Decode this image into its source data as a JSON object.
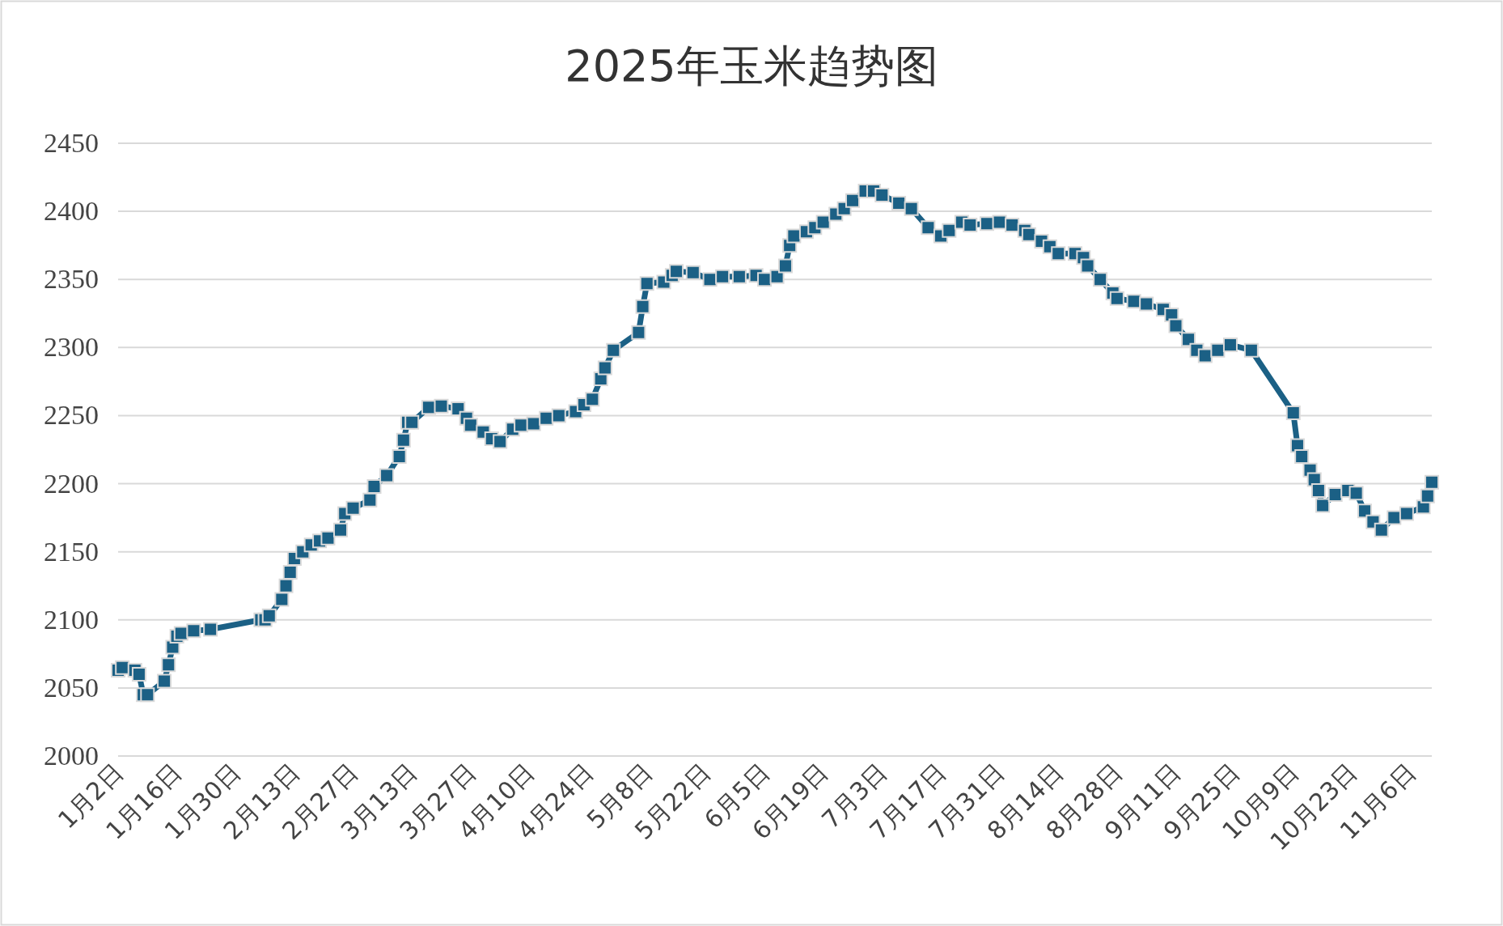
{
  "chart_data": {
    "type": "line",
    "title": "2025年玉米趋势图",
    "marker": "square",
    "line_style": "solid",
    "grid": "y",
    "xlim": [
      "--01-02",
      "--11-11"
    ],
    "ylim": [
      2000,
      2450
    ],
    "yticks": [
      2000,
      2050,
      2100,
      2150,
      2200,
      2250,
      2300,
      2350,
      2400,
      2450
    ],
    "xticks": [
      {
        "value": "--01-02",
        "label": "1月2日"
      },
      {
        "value": "--01-16",
        "label": "1月16日"
      },
      {
        "value": "--01-30",
        "label": "1月30日"
      },
      {
        "value": "--02-13",
        "label": "2月13日"
      },
      {
        "value": "--02-27",
        "label": "2月27日"
      },
      {
        "value": "--03-13",
        "label": "3月13日"
      },
      {
        "value": "--03-27",
        "label": "3月27日"
      },
      {
        "value": "--04-10",
        "label": "4月10日"
      },
      {
        "value": "--04-24",
        "label": "4月24日"
      },
      {
        "value": "--05-08",
        "label": "5月8日"
      },
      {
        "value": "--05-22",
        "label": "5月22日"
      },
      {
        "value": "--06-05",
        "label": "6月5日"
      },
      {
        "value": "--06-19",
        "label": "6月19日"
      },
      {
        "value": "--07-03",
        "label": "7月3日"
      },
      {
        "value": "--07-17",
        "label": "7月17日"
      },
      {
        "value": "--07-31",
        "label": "7月31日"
      },
      {
        "value": "--08-14",
        "label": "8月14日"
      },
      {
        "value": "--08-28",
        "label": "8月28日"
      },
      {
        "value": "--09-11",
        "label": "9月11日"
      },
      {
        "value": "--09-25",
        "label": "9月25日"
      },
      {
        "value": "--10-09",
        "label": "10月9日"
      },
      {
        "value": "--10-23",
        "label": "10月23日"
      },
      {
        "value": "--11-06",
        "label": "11月6日"
      }
    ],
    "x": [
      "--01-02",
      "--01-03",
      "--01-06",
      "--01-07",
      "--01-08",
      "--01-09",
      "--01-13",
      "--01-14",
      "--01-15",
      "--01-16",
      "--01-17",
      "--01-20",
      "--01-24",
      "--02-05",
      "--02-06",
      "--02-07",
      "--02-10",
      "--02-11",
      "--02-12",
      "--02-13",
      "--02-15",
      "--02-17",
      "--02-19",
      "--02-21",
      "--02-24",
      "--02-25",
      "--02-27",
      "--03-03",
      "--03-04",
      "--03-07",
      "--03-10",
      "--03-11",
      "--03-12",
      "--03-13",
      "--03-17",
      "--03-20",
      "--03-24",
      "--03-26",
      "--03-27",
      "--03-30",
      "--04-01",
      "--04-03",
      "--04-06",
      "--04-08",
      "--04-11",
      "--04-14",
      "--04-17",
      "--04-21",
      "--04-23",
      "--04-25",
      "--04-27",
      "--04-28",
      "--04-30",
      "--05-06",
      "--05-07",
      "--05-08",
      "--05-12",
      "--05-14",
      "--05-15",
      "--05-19",
      "--05-23",
      "--05-26",
      "--05-30",
      "--06-03",
      "--06-05",
      "--06-08",
      "--06-10",
      "--06-11",
      "--06-12",
      "--06-15",
      "--06-17",
      "--06-19",
      "--06-22",
      "--06-24",
      "--06-26",
      "--06-29",
      "--07-01",
      "--07-03",
      "--07-07",
      "--07-10",
      "--07-14",
      "--07-17",
      "--07-19",
      "--07-22",
      "--07-24",
      "--07-28",
      "--07-31",
      "--08-03",
      "--08-06",
      "--08-07",
      "--08-10",
      "--08-12",
      "--08-14",
      "--08-18",
      "--08-20",
      "--08-21",
      "--08-24",
      "--08-27",
      "--08-28",
      "--09-01",
      "--09-04",
      "--09-08",
      "--09-10",
      "--09-11",
      "--09-14",
      "--09-16",
      "--09-18",
      "--09-21",
      "--09-24",
      "--09-29",
      "--10-09",
      "--10-10",
      "--10-11",
      "--10-13",
      "--10-14",
      "--10-15",
      "--10-16",
      "--10-19",
      "--10-22",
      "--10-24",
      "--10-26",
      "--10-28",
      "--10-30",
      "--11-02",
      "--11-05",
      "--11-09",
      "--11-10",
      "--11-11"
    ],
    "series": [
      {
        "color": "#1b6085",
        "values": [
          2063,
          2065,
          2063,
          2060,
          2045,
          2045,
          2055,
          2067,
          2080,
          2088,
          2090,
          2092,
          2093,
          2100,
          2100,
          2103,
          2115,
          2125,
          2135,
          2145,
          2150,
          2155,
          2158,
          2160,
          2166,
          2178,
          2182,
          2188,
          2198,
          2206,
          2220,
          2232,
          2245,
          2245,
          2256,
          2257,
          2255,
          2248,
          2243,
          2238,
          2233,
          2231,
          2240,
          2243,
          2244,
          2248,
          2250,
          2253,
          2258,
          2262,
          2277,
          2285,
          2298,
          2311,
          2330,
          2347,
          2348,
          2353,
          2356,
          2355,
          2350,
          2352,
          2352,
          2353,
          2350,
          2352,
          2360,
          2375,
          2382,
          2385,
          2388,
          2392,
          2398,
          2402,
          2408,
          2415,
          2415,
          2412,
          2406,
          2402,
          2388,
          2382,
          2386,
          2392,
          2390,
          2391,
          2392,
          2390,
          2386,
          2383,
          2378,
          2374,
          2369,
          2369,
          2366,
          2360,
          2350,
          2340,
          2336,
          2334,
          2332,
          2328,
          2324,
          2316,
          2306,
          2298,
          2294,
          2298,
          2302,
          2298,
          2252,
          2228,
          2220,
          2210,
          2203,
          2195,
          2184,
          2192,
          2195,
          2193,
          2180,
          2172,
          2166,
          2175,
          2178,
          2183,
          2191,
          2201
        ]
      }
    ]
  }
}
